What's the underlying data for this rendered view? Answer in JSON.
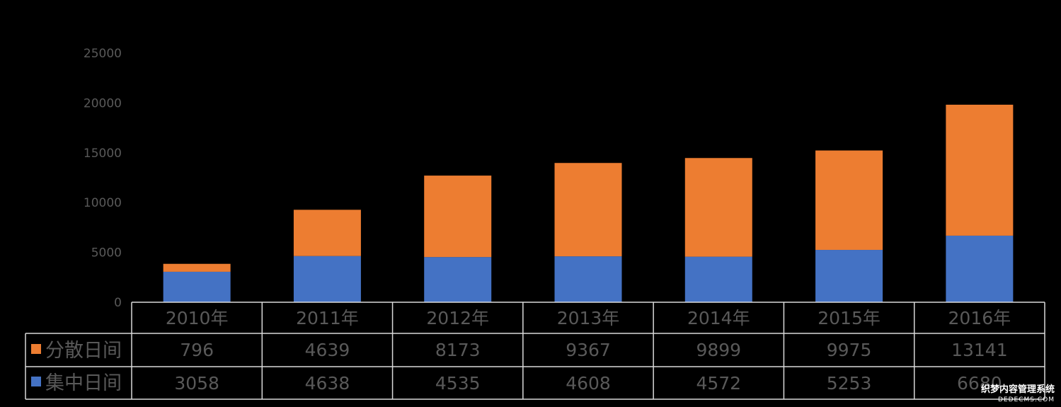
{
  "chart_data": {
    "type": "bar",
    "stacked": true,
    "categories": [
      "2010年",
      "2011年",
      "2012年",
      "2013年",
      "2014年",
      "2015年",
      "2016年"
    ],
    "series": [
      {
        "name": "集中日间",
        "color": "#4472C4",
        "values": [
          3058,
          4638,
          4535,
          4608,
          4572,
          5253,
          6680
        ]
      },
      {
        "name": "分散日间",
        "color": "#ED7D31",
        "values": [
          796,
          4639,
          8173,
          9367,
          9899,
          9975,
          13141
        ]
      }
    ],
    "table_values": {
      "分散日间": [
        "796",
        "4639",
        "8173",
        "9367",
        "9899",
        "9975",
        "13141"
      ],
      "集中日间": [
        "3058",
        "4638",
        "4535",
        "4608",
        "4572",
        "5253",
        "6680"
      ]
    },
    "ylim": [
      0,
      25000
    ],
    "yticks": [
      "0",
      "5000",
      "10000",
      "15000",
      "20000",
      "25000"
    ],
    "legend": "data-table",
    "grid": false
  },
  "watermark": {
    "main": "织梦内容管理系统",
    "sub": "DEDECMS.COM"
  }
}
